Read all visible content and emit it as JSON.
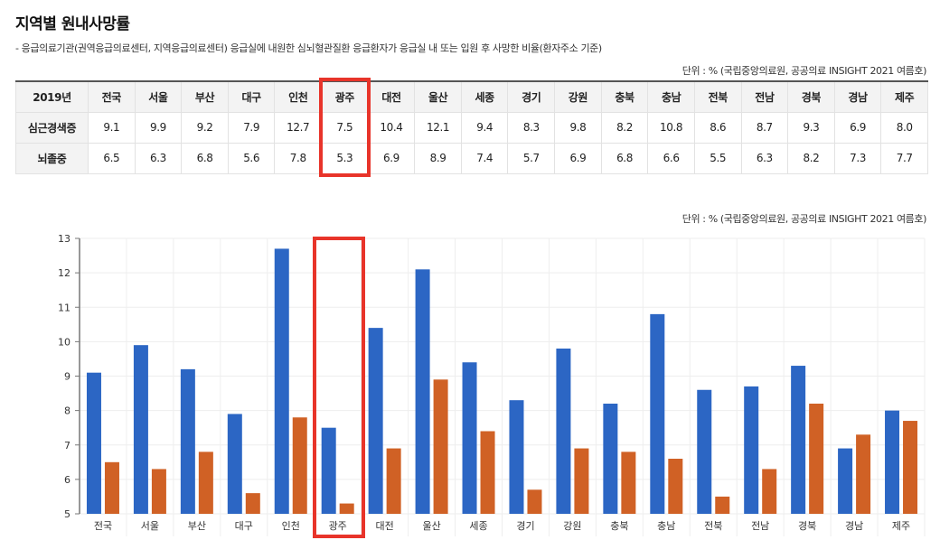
{
  "page": {
    "title": "지역별 원내사망률",
    "description": "- 응급의료기관(권역응급의료센터, 지역응급의료센터) 응급실에 내원한 심뇌혈관질환 응급환자가 응급실 내 또는 입원 후 사망한 비율(환자주소 기준)",
    "unit_note_table": "단위 : % (국립중앙의료원, 공공의료 INSIGHT 2021 여름호)",
    "unit_note_chart": "단위 : % (국립중앙의료원, 공공의료 INSIGHT 2021 여름호)"
  },
  "table": {
    "corner_header": "2019년",
    "columns": [
      "전국",
      "서울",
      "부산",
      "대구",
      "인천",
      "광주",
      "대전",
      "울산",
      "세종",
      "경기",
      "강원",
      "충북",
      "충남",
      "전북",
      "전남",
      "경북",
      "경남",
      "제주"
    ],
    "rows": [
      {
        "label": "심근경색증",
        "values": [
          "9.1",
          "9.9",
          "9.2",
          "7.9",
          "12.7",
          "7.5",
          "10.4",
          "12.1",
          "9.4",
          "8.3",
          "9.8",
          "8.2",
          "10.8",
          "8.6",
          "8.7",
          "9.3",
          "6.9",
          "8.0"
        ]
      },
      {
        "label": "뇌졸중",
        "values": [
          "6.5",
          "6.3",
          "6.8",
          "5.6",
          "7.8",
          "5.3",
          "6.9",
          "8.9",
          "7.4",
          "5.7",
          "6.9",
          "6.8",
          "6.6",
          "5.5",
          "6.3",
          "8.2",
          "7.3",
          "7.7"
        ]
      }
    ],
    "highlighted_column": "광주"
  },
  "colors": {
    "series1": "#2c66c4",
    "series2": "#d06125",
    "highlight": "#e8342a",
    "grid": "#eeeeee",
    "axis": "#777777"
  },
  "chart_data": {
    "type": "bar",
    "title": "",
    "xlabel": "",
    "ylabel": "",
    "categories": [
      "전국",
      "서울",
      "부산",
      "대구",
      "인천",
      "광주",
      "대전",
      "울산",
      "세종",
      "경기",
      "강원",
      "충북",
      "충남",
      "전북",
      "전남",
      "경북",
      "경남",
      "제주"
    ],
    "series": [
      {
        "name": "심근경색증",
        "values": [
          9.1,
          9.9,
          9.2,
          7.9,
          12.7,
          7.5,
          10.4,
          12.1,
          9.4,
          8.3,
          9.8,
          8.2,
          10.8,
          8.6,
          8.7,
          9.3,
          6.9,
          8.0
        ]
      },
      {
        "name": "뇌졸중",
        "values": [
          6.5,
          6.3,
          6.8,
          5.6,
          7.8,
          5.3,
          6.9,
          8.9,
          7.4,
          5.7,
          6.9,
          6.8,
          6.6,
          5.5,
          6.3,
          8.2,
          7.3,
          7.7
        ]
      }
    ],
    "ylim": [
      5,
      13
    ],
    "yticks": [
      5,
      6,
      7,
      8,
      9,
      10,
      11,
      12,
      13
    ],
    "grid": true,
    "legend": "none",
    "annotation": "광주 highlighted with red box"
  }
}
